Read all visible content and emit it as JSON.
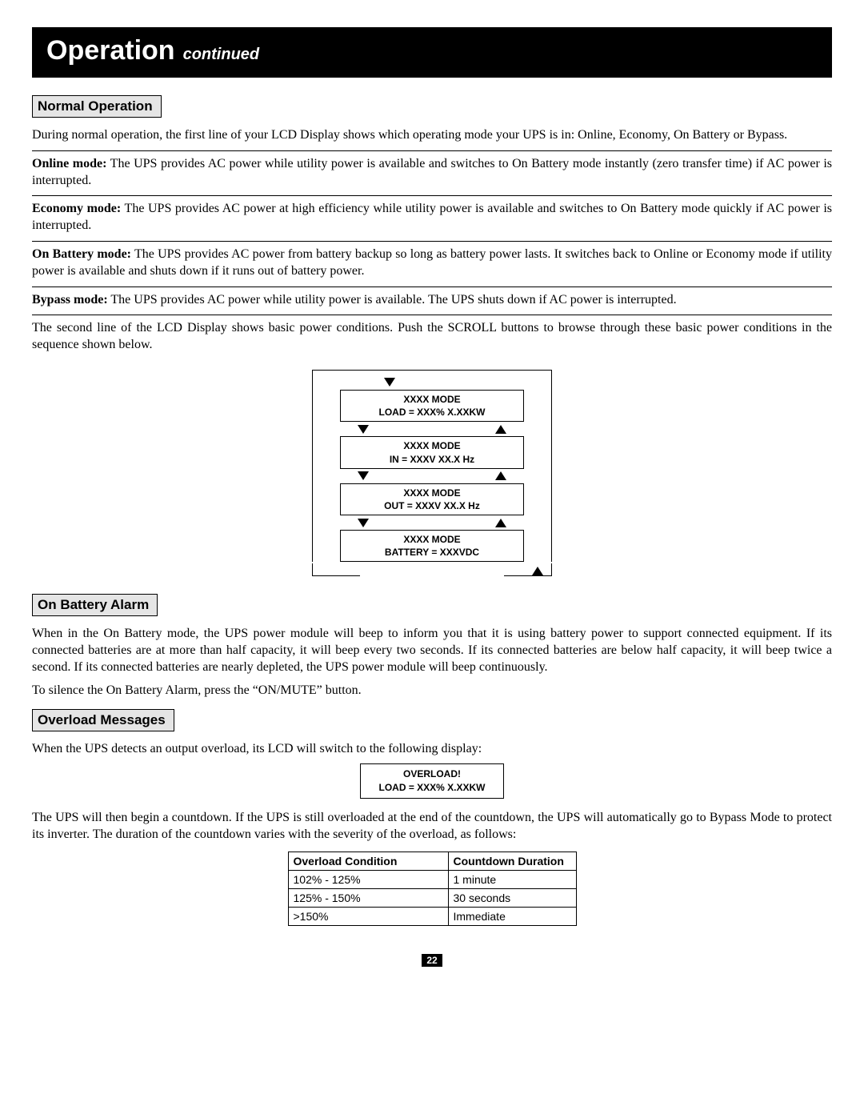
{
  "header": {
    "title": "Operation",
    "subtitle": "continued"
  },
  "sections": {
    "normal": {
      "heading": "Normal Operation",
      "intro": "During normal operation, the first line of your LCD Display shows which operating mode your UPS is in: Online, Economy, On Battery or Bypass.",
      "modes": {
        "online": {
          "label": "Online mode:",
          "text": " The UPS provides AC power while utility power is available and switches to On Battery mode instantly (zero transfer time) if AC power is interrupted."
        },
        "economy": {
          "label": "Economy mode:",
          "text": " The UPS provides AC power at high efficiency while utility power is available and switches to On Battery mode quickly if AC power is interrupted."
        },
        "onbattery": {
          "label": "On Battery mode:",
          "text": " The UPS provides AC power from battery backup so long as battery power lasts. It switches back to Online or Economy mode if utility power is available and shuts down if it runs out of battery power."
        },
        "bypass": {
          "label": "Bypass mode:",
          "text": " The UPS provides AC power while utility power is available. The UPS shuts down if AC power is interrupted."
        }
      },
      "scroll_text": "The second line of the LCD Display shows basic power conditions. Push the SCROLL buttons to browse through these basic power conditions in the sequence shown below."
    },
    "alarm": {
      "heading": "On Battery Alarm",
      "p1": "When in the On Battery mode, the UPS power module will beep to inform you that it is using battery power to support connected equipment. If its connected batteries are at more than half capacity, it will beep every two seconds. If its connected batteries are below half capacity, it will beep twice a second. If its connected batteries are nearly depleted, the UPS power module will beep continuously.",
      "p2": "To silence the On Battery Alarm, press the “ON/MUTE” button."
    },
    "overload": {
      "heading": "Overload Messages",
      "intro": "When the UPS detects an output overload, its LCD will switch to the following display:",
      "lcd": {
        "line1": "OVERLOAD!",
        "line2": "LOAD = XXX% X.XXKW"
      },
      "after": "The UPS will then begin a countdown. If the UPS is still overloaded at the end of the countdown, the UPS will automatically go to Bypass Mode to protect its inverter. The duration of the countdown varies with the severity of the overload, as follows:",
      "table": {
        "cols": [
          "Overload Condition",
          "Countdown Duration"
        ],
        "rows": [
          [
            "102% - 125%",
            "1 minute"
          ],
          [
            "125% - 150%",
            "30 seconds"
          ],
          [
            ">150%",
            "Immediate"
          ]
        ]
      }
    }
  },
  "lcd_flow": {
    "screens": [
      {
        "line1": "XXXX MODE",
        "line2": "LOAD = XXX% X.XXKW"
      },
      {
        "line1": "XXXX MODE",
        "line2": "IN = XXXV XX.X Hz"
      },
      {
        "line1": "XXXX MODE",
        "line2": "OUT = XXXV XX.X Hz"
      },
      {
        "line1": "XXXX MODE",
        "line2": "BATTERY = XXXVDC"
      }
    ]
  },
  "page_number": "22",
  "colors": {
    "titlebar_bg": "#000000",
    "titlebar_fg": "#ffffff",
    "section_head_bg": "#e5e5e5",
    "border": "#000000",
    "text": "#000000",
    "page_bg": "#ffffff"
  },
  "typography": {
    "title_fontsize_pt": 26,
    "subtitle_fontsize_pt": 15,
    "section_head_fontsize_pt": 13,
    "body_fontsize_pt": 12,
    "lcd_fontsize_pt": 9,
    "table_fontsize_pt": 10,
    "body_font": "Times New Roman",
    "ui_font": "Arial"
  }
}
